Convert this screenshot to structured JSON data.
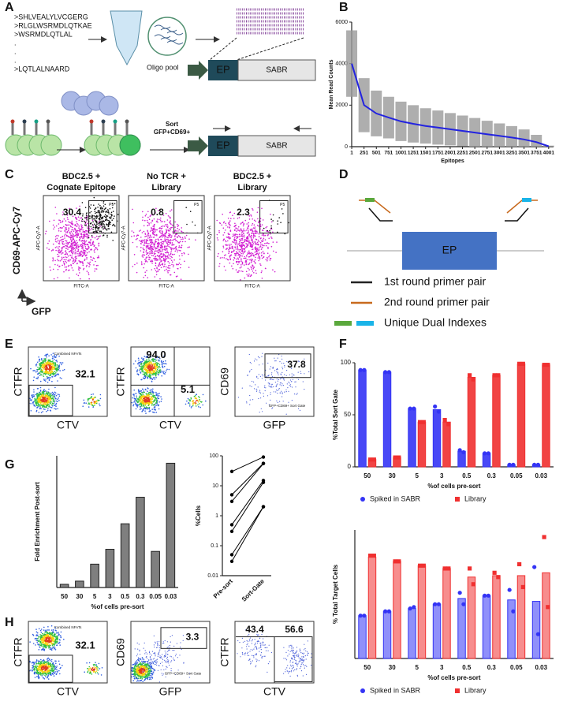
{
  "panel_labels": {
    "a": "A",
    "b": "B",
    "c": "C",
    "d": "D",
    "e": "E",
    "f": "F",
    "g": "G",
    "h": "H"
  },
  "panel_a": {
    "sequences": [
      ">SHLVEALYLVCGERG",
      ">RLGLWSRMDLQTKAE",
      ">WSRMDLQTLAL",
      ".",
      ".",
      ".",
      ">LQTLALNAARD"
    ],
    "pool_label": "Oligo pool",
    "ep": "EP",
    "sabr": "SABR",
    "sort_label": [
      "Sort",
      "GFP+CD69+"
    ],
    "ep2": "EP",
    "sabr2": "SABR"
  },
  "panel_c": {
    "y_label": "CD69-APC-Cy7",
    "x_label": "GFP",
    "plots": [
      {
        "title": [
          "BDC2.5 +",
          "Cognate Epitope"
        ],
        "value": "30.4",
        "gate": "P5",
        "y_axis": "APC-Cy7-A",
        "x_axis": "FITC-A"
      },
      {
        "title": [
          "No TCR +",
          "Library"
        ],
        "value": "0.8",
        "gate": "P5",
        "y_axis": "APC-Cy7-A",
        "x_axis": "FITC-A"
      },
      {
        "title": [
          "BDC2.5 +",
          "Library"
        ],
        "value": "2.3",
        "gate": "P5",
        "y_axis": "APC-Cy7-A",
        "x_axis": "FITC-A"
      }
    ]
  },
  "panel_d": {
    "ep": "EP",
    "legend": [
      "1st round primer pair",
      "2nd round primer pair",
      "Unique Dual Indexes"
    ]
  },
  "panel_e": {
    "plots": [
      {
        "y_label": "CTFR",
        "x_label": "CTV",
        "values": [
          "32.1"
        ],
        "gate_label": "Combined NFATs"
      },
      {
        "y_label": "CTFR",
        "x_label": "CTV",
        "values": [
          "94.0",
          "5.1"
        ]
      },
      {
        "y_label": "CD69",
        "x_label": "GFP",
        "values": [
          "37.8"
        ],
        "gate_label": "GFP+CD69+ Sort Gate"
      }
    ]
  },
  "panel_h": {
    "plots": [
      {
        "y_label": "CTFR",
        "x_label": "CTV",
        "values": [
          "32.1"
        ],
        "gate_label": "Combined NFATs"
      },
      {
        "y_label": "CD69",
        "x_label": "GFP",
        "values": [
          "3.3"
        ],
        "gate_label": "GFP+CD69+ Sort Gate"
      },
      {
        "y_label": "CTFR",
        "x_label": "CTV",
        "values": [
          "43.4",
          "56.6"
        ]
      }
    ]
  },
  "chart_data": [
    {
      "type": "line",
      "y_label": "Mean Read Counts",
      "x_label": "Epitopes",
      "x": [
        1,
        251,
        501,
        751,
        1001,
        1251,
        1501,
        1751,
        2001,
        2251,
        2501,
        2751,
        3001,
        3251,
        3501,
        3751,
        4001
      ],
      "values": [
        4000,
        2000,
        1600,
        1400,
        1220,
        1100,
        1000,
        920,
        840,
        760,
        680,
        600,
        520,
        440,
        350,
        220,
        20
      ],
      "errors": [
        1600,
        1300,
        1100,
        1000,
        950,
        900,
        850,
        820,
        780,
        740,
        700,
        650,
        600,
        550,
        480,
        350,
        30
      ],
      "color": "#2323e0",
      "error_color": "#9a9a9a",
      "xlim": [
        0,
        4100
      ],
      "ylim": [
        0,
        6000
      ],
      "yticks": [
        0,
        2000,
        4000,
        6000
      ],
      "xticks": [
        1,
        251,
        501,
        751,
        1001,
        1251,
        1501,
        1751,
        2001,
        2251,
        2501,
        2751,
        3001,
        3251,
        3501,
        3751,
        4001
      ]
    },
    {
      "type": "bar",
      "y_label": "%Total Sort Gate",
      "x_label": "%of cells pre-sort",
      "categories": [
        "50",
        "30",
        "5",
        "3",
        "0.5",
        "0.3",
        "0.05",
        "0.03"
      ],
      "series": [
        {
          "name": "Spiked in SABR",
          "color": "#3434f5",
          "values": [
            93,
            91,
            56,
            55,
            15,
            13,
            2,
            2
          ],
          "points": [
            [
              93,
              93
            ],
            [
              91,
              91
            ],
            [
              56,
              56
            ],
            [
              58,
              53
            ],
            [
              16,
              14
            ],
            [
              13,
              13
            ],
            [
              2,
              2
            ],
            [
              2,
              2
            ]
          ]
        },
        {
          "name": "Library",
          "color": "#f03030",
          "values": [
            7,
            9,
            43,
            43,
            86,
            88,
            99,
            98
          ],
          "points": [
            [
              7,
              7
            ],
            [
              9,
              9
            ],
            [
              43,
              43
            ],
            [
              45,
              41
            ],
            [
              88,
              84
            ],
            [
              88,
              88
            ],
            [
              99,
              99
            ],
            [
              98,
              98
            ]
          ]
        }
      ],
      "ylim": [
        0,
        100
      ],
      "yticks": [
        0,
        50,
        100
      ],
      "legend": "bottom"
    },
    {
      "type": "bar",
      "y_label": "Fold Enrichment  Post-sort",
      "x_label": "%of cells pre-sort",
      "categories": [
        "50",
        "30",
        "5",
        "3",
        "0.5",
        "0.3",
        "0.05",
        "0.03"
      ],
      "values": [
        1.5,
        3,
        11,
        18,
        30,
        42.5,
        17,
        58.5
      ],
      "color": "#7f7f7f",
      "ylim": [
        0,
        62
      ]
    },
    {
      "type": "paired",
      "y_label": "%Cells",
      "categories": [
        "Pre-sort",
        "Sort-Gate"
      ],
      "log_scale": true,
      "ylim": [
        0.01,
        100
      ],
      "yticks": [
        0.01,
        0.1,
        1,
        10,
        100
      ],
      "series": [
        {
          "color": "#000000",
          "values": [
            30,
            91
          ]
        },
        {
          "color": "#000000",
          "values": [
            5,
            56
          ]
        },
        {
          "color": "#000000",
          "values": [
            3,
            55
          ]
        },
        {
          "color": "#000000",
          "values": [
            0.5,
            15
          ]
        },
        {
          "color": "#000000",
          "values": [
            0.3,
            13
          ]
        },
        {
          "color": "#000000",
          "values": [
            0.05,
            2
          ]
        },
        {
          "color": "#000000",
          "values": [
            0.03,
            2
          ]
        }
      ]
    },
    {
      "type": "bar",
      "y_label": "% Total Target Cells",
      "x_label": "%of cells pre-sort",
      "categories": [
        "50",
        "30",
        "5",
        "3",
        "0.5",
        "0.3",
        "0.05",
        "0.03"
      ],
      "series": [
        {
          "name": "Spiked in SABR",
          "color": "#3434f5",
          "values": [
            30,
            33,
            35,
            38,
            42,
            44,
            41,
            40
          ],
          "points": [
            [
              30,
              30
            ],
            [
              33,
              33
            ],
            [
              35,
              36
            ],
            [
              38,
              38
            ],
            [
              46,
              38
            ],
            [
              44,
              44
            ],
            [
              48,
              33
            ],
            [
              64,
              17
            ]
          ]
        },
        {
          "name": "Library",
          "color": "#f03030",
          "values": [
            71,
            68,
            65,
            63,
            57,
            58,
            58,
            60
          ],
          "points": [
            [
              72,
              72
            ],
            [
              68,
              68
            ],
            [
              65,
              65
            ],
            [
              63,
              63
            ],
            [
              63,
              52
            ],
            [
              60,
              57
            ],
            [
              66,
              50
            ],
            [
              85,
              36
            ]
          ]
        }
      ],
      "ylim": [
        0,
        90
      ],
      "legend": "bottom"
    }
  ]
}
